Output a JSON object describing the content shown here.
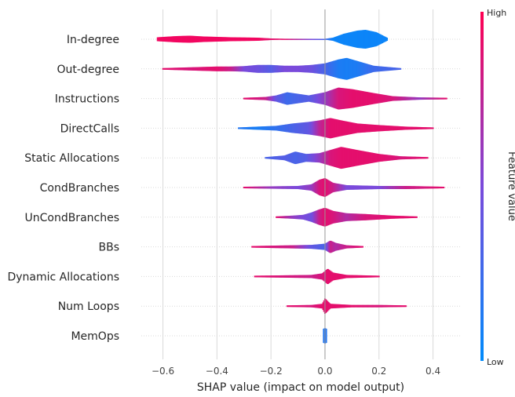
{
  "chart_data": {
    "type": "violin",
    "title": "",
    "xlabel": "SHAP value (impact on model output)",
    "ylabel": "",
    "xlim": [
      -0.68,
      0.5
    ],
    "xticks": [
      -0.6,
      -0.4,
      -0.2,
      0.0,
      0.2,
      0.4
    ],
    "xtick_labels": [
      "−0.6",
      "−0.4",
      "−0.2",
      "0.0",
      "0.2",
      "0.4"
    ],
    "grid": true,
    "colorbar": {
      "high_label": "High",
      "low_label": "Low",
      "title": "Feature value",
      "high_color": "#ff0052",
      "low_color": "#008bfb"
    },
    "features": [
      {
        "name": "In-degree",
        "range": [
          -0.62,
          0.23
        ],
        "profile": [
          [
            -0.62,
            2.5,
            0.95
          ],
          [
            -0.55,
            4,
            0.95
          ],
          [
            -0.5,
            4.5,
            0.95
          ],
          [
            -0.45,
            3.5,
            0.95
          ],
          [
            -0.35,
            2.5,
            0.95
          ],
          [
            -0.25,
            2,
            0.95
          ],
          [
            -0.2,
            1,
            0.9
          ],
          [
            -0.15,
            0.6,
            0.9
          ],
          [
            0.0,
            0.5,
            0.3
          ],
          [
            0.03,
            2,
            0.05
          ],
          [
            0.07,
            7,
            0.05
          ],
          [
            0.12,
            11,
            0.05
          ],
          [
            0.15,
            12,
            0.05
          ],
          [
            0.19,
            9,
            0.05
          ],
          [
            0.23,
            2,
            0.05
          ]
        ]
      },
      {
        "name": "Out-degree",
        "range": [
          -0.6,
          0.28
        ],
        "profile": [
          [
            -0.6,
            1,
            0.9
          ],
          [
            -0.5,
            2,
            0.85
          ],
          [
            -0.4,
            3,
            0.9
          ],
          [
            -0.35,
            3,
            0.8
          ],
          [
            -0.3,
            3.5,
            0.5
          ],
          [
            -0.25,
            5,
            0.45
          ],
          [
            -0.2,
            5,
            0.35
          ],
          [
            -0.15,
            4,
            0.5
          ],
          [
            -0.1,
            4,
            0.5
          ],
          [
            -0.05,
            5,
            0.45
          ],
          [
            0.0,
            7,
            0.3
          ],
          [
            0.05,
            12,
            0.12
          ],
          [
            0.08,
            14,
            0.1
          ],
          [
            0.12,
            10,
            0.12
          ],
          [
            0.18,
            4,
            0.25
          ],
          [
            0.28,
            1,
            0.3
          ]
        ]
      },
      {
        "name": "Instructions",
        "range": [
          -0.3,
          0.45
        ],
        "profile": [
          [
            -0.3,
            1,
            0.9
          ],
          [
            -0.22,
            2,
            0.8
          ],
          [
            -0.18,
            4,
            0.4
          ],
          [
            -0.14,
            8,
            0.25
          ],
          [
            -0.1,
            6,
            0.3
          ],
          [
            -0.06,
            4,
            0.35
          ],
          [
            0.0,
            8,
            0.6
          ],
          [
            0.05,
            14,
            0.85
          ],
          [
            0.1,
            12,
            0.9
          ],
          [
            0.18,
            7,
            0.9
          ],
          [
            0.25,
            3,
            0.85
          ],
          [
            0.35,
            1.5,
            0.6
          ],
          [
            0.45,
            1,
            0.9
          ]
        ]
      },
      {
        "name": "DirectCalls",
        "range": [
          -0.32,
          0.4
        ],
        "profile": [
          [
            -0.32,
            1,
            0.15
          ],
          [
            -0.25,
            2,
            0.1
          ],
          [
            -0.18,
            3,
            0.2
          ],
          [
            -0.12,
            6,
            0.3
          ],
          [
            -0.06,
            8,
            0.4
          ],
          [
            -0.02,
            10,
            0.75
          ],
          [
            0.02,
            13,
            0.9
          ],
          [
            0.06,
            10,
            0.9
          ],
          [
            0.12,
            6,
            0.9
          ],
          [
            0.2,
            4,
            0.9
          ],
          [
            0.3,
            2,
            0.9
          ],
          [
            0.4,
            1,
            0.9
          ]
        ]
      },
      {
        "name": "Static Allocations",
        "range": [
          -0.22,
          0.38
        ],
        "profile": [
          [
            -0.22,
            1,
            0.3
          ],
          [
            -0.15,
            3,
            0.35
          ],
          [
            -0.11,
            8,
            0.3
          ],
          [
            -0.07,
            5,
            0.35
          ],
          [
            -0.02,
            6,
            0.6
          ],
          [
            0.02,
            10,
            0.85
          ],
          [
            0.06,
            14,
            0.9
          ],
          [
            0.12,
            10,
            0.9
          ],
          [
            0.2,
            5,
            0.9
          ],
          [
            0.28,
            2,
            0.85
          ],
          [
            0.38,
            1,
            0.9
          ]
        ]
      },
      {
        "name": "CondBranches",
        "range": [
          -0.3,
          0.44
        ],
        "profile": [
          [
            -0.3,
            1,
            0.9
          ],
          [
            -0.2,
            1.5,
            0.6
          ],
          [
            -0.1,
            2,
            0.5
          ],
          [
            -0.05,
            4,
            0.6
          ],
          [
            -0.02,
            10,
            0.85
          ],
          [
            0.0,
            12,
            0.9
          ],
          [
            0.03,
            6,
            0.8
          ],
          [
            0.08,
            3,
            0.5
          ],
          [
            0.2,
            2,
            0.5
          ],
          [
            0.3,
            2,
            0.8
          ],
          [
            0.44,
            1,
            0.9
          ]
        ]
      },
      {
        "name": "UnCondBranches",
        "range": [
          -0.18,
          0.34
        ],
        "profile": [
          [
            -0.18,
            1,
            0.9
          ],
          [
            -0.12,
            2,
            0.6
          ],
          [
            -0.08,
            3,
            0.5
          ],
          [
            -0.05,
            6,
            0.45
          ],
          [
            -0.02,
            10,
            0.8
          ],
          [
            0.0,
            12,
            0.9
          ],
          [
            0.03,
            8,
            0.85
          ],
          [
            0.08,
            5,
            0.7
          ],
          [
            0.15,
            4,
            0.85
          ],
          [
            0.25,
            2,
            0.9
          ],
          [
            0.34,
            1,
            0.9
          ]
        ]
      },
      {
        "name": "BBs",
        "range": [
          -0.27,
          0.14
        ],
        "profile": [
          [
            -0.27,
            1,
            0.9
          ],
          [
            -0.2,
            1.5,
            0.85
          ],
          [
            -0.12,
            2,
            0.8
          ],
          [
            -0.05,
            2.5,
            0.4
          ],
          [
            0.0,
            4,
            0.3
          ],
          [
            0.02,
            8,
            0.8
          ],
          [
            0.04,
            5,
            0.7
          ],
          [
            0.08,
            2,
            0.8
          ],
          [
            0.14,
            1,
            0.9
          ]
        ]
      },
      {
        "name": "Dynamic Allocations",
        "range": [
          -0.26,
          0.2
        ],
        "profile": [
          [
            -0.26,
            1,
            0.9
          ],
          [
            -0.15,
            1.5,
            0.85
          ],
          [
            -0.05,
            2,
            0.8
          ],
          [
            -0.01,
            4,
            0.85
          ],
          [
            0.01,
            10,
            0.9
          ],
          [
            0.03,
            5,
            0.9
          ],
          [
            0.08,
            2,
            0.9
          ],
          [
            0.2,
            1,
            0.9
          ]
        ]
      },
      {
        "name": "Num Loops",
        "range": [
          -0.14,
          0.3
        ],
        "profile": [
          [
            -0.14,
            1,
            0.9
          ],
          [
            -0.05,
            1.5,
            0.85
          ],
          [
            -0.01,
            3,
            0.9
          ],
          [
            0.0,
            10,
            0.9
          ],
          [
            0.02,
            3,
            0.9
          ],
          [
            0.1,
            1.5,
            0.9
          ],
          [
            0.2,
            1.5,
            0.85
          ],
          [
            0.3,
            1,
            0.9
          ]
        ]
      },
      {
        "name": "MemOps",
        "range": [
          -0.005,
          0.005
        ],
        "profile": [
          [
            -0.005,
            9,
            0.15
          ],
          [
            0.0,
            10,
            0.15
          ],
          [
            0.005,
            9,
            0.15
          ]
        ]
      }
    ]
  }
}
